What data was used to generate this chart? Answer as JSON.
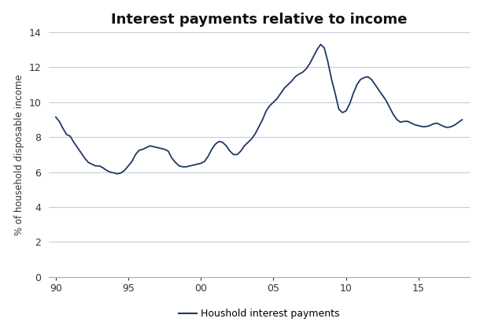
{
  "title": "Interest payments relative to income",
  "ylabel": "% of household disposable income",
  "xlabel_legend": "Houshold interest payments",
  "line_color": "#1f3864",
  "background_color": "#ffffff",
  "grid_color": "#c5cdd8",
  "ylim": [
    0,
    14
  ],
  "yticks": [
    0,
    2,
    4,
    6,
    8,
    10,
    12,
    14
  ],
  "xticks": [
    90,
    95,
    100,
    105,
    110,
    115
  ],
  "xtick_labels": [
    "90",
    "95",
    "00",
    "05",
    "10",
    "15"
  ],
  "xlim": [
    89.5,
    118.5
  ],
  "x": [
    90.0,
    90.25,
    90.5,
    90.75,
    91.0,
    91.25,
    91.5,
    91.75,
    92.0,
    92.25,
    92.5,
    92.75,
    93.0,
    93.25,
    93.5,
    93.75,
    94.0,
    94.25,
    94.5,
    94.75,
    95.0,
    95.25,
    95.5,
    95.75,
    96.0,
    96.25,
    96.5,
    96.75,
    97.0,
    97.25,
    97.5,
    97.75,
    98.0,
    98.25,
    98.5,
    98.75,
    99.0,
    99.25,
    99.5,
    99.75,
    100.0,
    100.25,
    100.5,
    100.75,
    101.0,
    101.25,
    101.5,
    101.75,
    102.0,
    102.25,
    102.5,
    102.75,
    103.0,
    103.25,
    103.5,
    103.75,
    104.0,
    104.25,
    104.5,
    104.75,
    105.0,
    105.25,
    105.5,
    105.75,
    106.0,
    106.25,
    106.5,
    106.75,
    107.0,
    107.25,
    107.5,
    107.75,
    108.0,
    108.25,
    108.5,
    108.75,
    109.0,
    109.25,
    109.5,
    109.75,
    110.0,
    110.25,
    110.5,
    110.75,
    111.0,
    111.25,
    111.5,
    111.75,
    112.0,
    112.25,
    112.5,
    112.75,
    113.0,
    113.25,
    113.5,
    113.75,
    114.0,
    114.25,
    114.5,
    114.75,
    115.0,
    115.25,
    115.5,
    115.75,
    116.0,
    116.25,
    116.5,
    116.75,
    117.0,
    117.25,
    117.5,
    117.75,
    118.0
  ],
  "y": [
    9.15,
    8.9,
    8.5,
    8.15,
    8.05,
    7.7,
    7.4,
    7.1,
    6.8,
    6.55,
    6.45,
    6.35,
    6.35,
    6.25,
    6.1,
    6.0,
    5.95,
    5.9,
    5.95,
    6.1,
    6.35,
    6.6,
    7.0,
    7.25,
    7.3,
    7.4,
    7.5,
    7.45,
    7.4,
    7.35,
    7.3,
    7.2,
    6.8,
    6.55,
    6.35,
    6.3,
    6.3,
    6.35,
    6.4,
    6.45,
    6.5,
    6.6,
    6.9,
    7.3,
    7.6,
    7.75,
    7.7,
    7.5,
    7.2,
    7.0,
    7.0,
    7.2,
    7.5,
    7.7,
    7.9,
    8.2,
    8.6,
    9.0,
    9.5,
    9.8,
    10.0,
    10.2,
    10.5,
    10.8,
    11.0,
    11.2,
    11.45,
    11.6,
    11.7,
    11.9,
    12.2,
    12.6,
    13.0,
    13.3,
    13.1,
    12.3,
    11.3,
    10.5,
    9.6,
    9.4,
    9.5,
    9.9,
    10.5,
    11.0,
    11.3,
    11.4,
    11.45,
    11.3,
    11.0,
    10.7,
    10.4,
    10.1,
    9.7,
    9.3,
    9.0,
    8.85,
    8.9,
    8.9,
    8.8,
    8.7,
    8.65,
    8.6,
    8.6,
    8.65,
    8.75,
    8.8,
    8.7,
    8.6,
    8.55,
    8.6,
    8.7,
    8.85,
    9.0
  ]
}
